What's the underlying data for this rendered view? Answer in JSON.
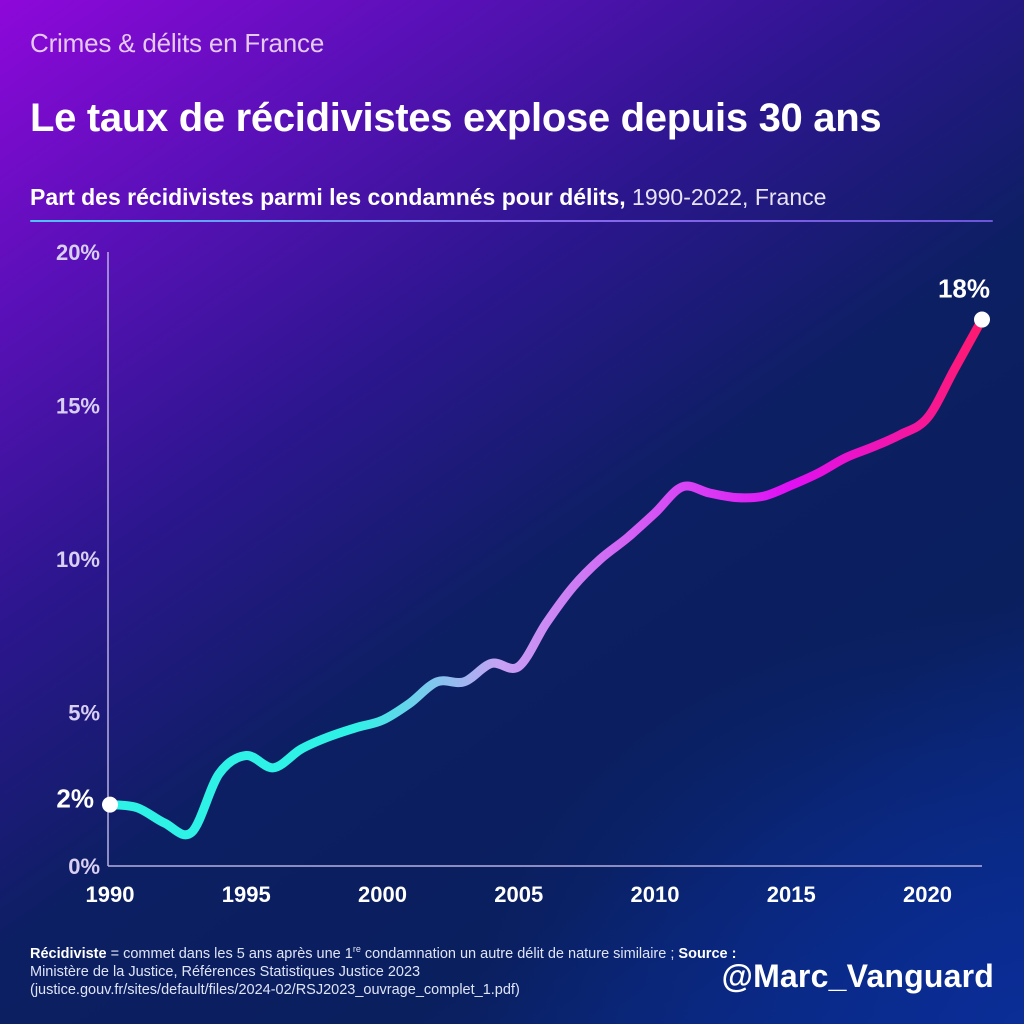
{
  "header": {
    "kicker": "Crimes & délits en France",
    "title": "Le taux de récidivistes explose depuis 30 ans",
    "subtitle_bold": "Part des récidivistes parmi les condamnés pour délits,",
    "subtitle_light": " 1990-2022, France"
  },
  "colors": {
    "line_start": "#2ef2e6",
    "line_mid1": "#c8a0f4",
    "line_mid2": "#e010f4",
    "line_end": "#ff1a6e",
    "marker": "#ffffff",
    "axis": "#b8b0e0"
  },
  "chart_data": {
    "type": "line",
    "title": "Part des récidivistes parmi les condamnés pour délits, 1990-2022, France",
    "xlabel": "",
    "ylabel": "",
    "x": [
      1990,
      1991,
      1992,
      1993,
      1994,
      1995,
      1996,
      1997,
      1998,
      1999,
      2000,
      2001,
      2002,
      2003,
      2004,
      2005,
      2006,
      2007,
      2008,
      2009,
      2010,
      2011,
      2012,
      2013,
      2014,
      2015,
      2016,
      2017,
      2018,
      2019,
      2020,
      2021,
      2022
    ],
    "series": [
      {
        "name": "Part des récidivistes (%)",
        "values": [
          2.0,
          1.9,
          1.4,
          1.1,
          3.0,
          3.6,
          3.2,
          3.8,
          4.2,
          4.5,
          4.75,
          5.3,
          6.0,
          6.0,
          6.6,
          6.5,
          7.9,
          9.1,
          10.0,
          10.7,
          11.5,
          12.35,
          12.15,
          12.0,
          12.05,
          12.4,
          12.8,
          13.3,
          13.65,
          14.05,
          14.6,
          16.2,
          17.8
        ]
      }
    ],
    "xlim": [
      1990,
      2022
    ],
    "ylim": [
      0,
      20
    ],
    "x_ticks": [
      "1990",
      "1995",
      "2000",
      "2005",
      "2010",
      "2015",
      "2020"
    ],
    "x_tick_values": [
      1990,
      1995,
      2000,
      2005,
      2010,
      2015,
      2020
    ],
    "y_ticks": [
      "0%",
      "5%",
      "10%",
      "15%",
      "20%"
    ],
    "y_tick_values": [
      0,
      5,
      10,
      15,
      20
    ],
    "annotations": [
      {
        "label": "2%",
        "x": 1990,
        "y": 2.0,
        "position": "left"
      },
      {
        "label": "18%",
        "x": 2022,
        "y": 17.8,
        "position": "above"
      }
    ],
    "grid": false,
    "legend": "none"
  },
  "footer": {
    "definition_term": "Récidiviste",
    "definition_text_1": " = commet dans les 5 ans après une 1",
    "definition_sup": "re",
    "definition_text_2": " condamnation un autre délit de nature similaire ; ",
    "source_label": "Source :",
    "source_line_1": "Ministère de la Justice, Références Statistiques Justice 2023",
    "source_line_2": "(justice.gouv.fr/sites/default/files/2024-02/RSJ2023_ouvrage_complet_1.pdf)",
    "handle": "@Marc_Vanguard"
  }
}
